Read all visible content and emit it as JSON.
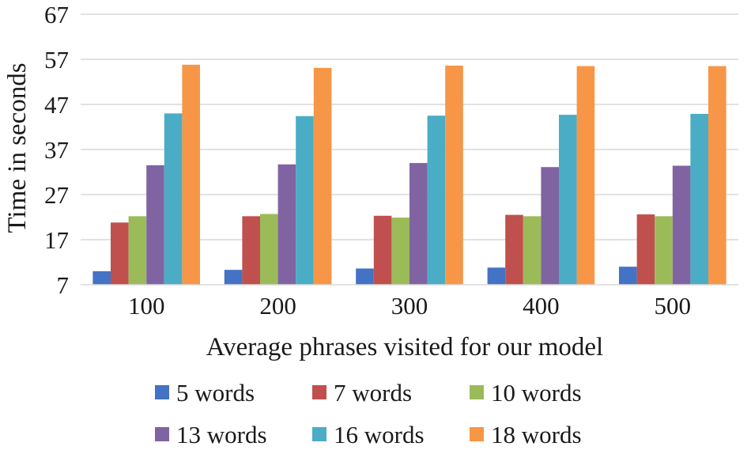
{
  "chart_data": {
    "type": "bar",
    "title": "",
    "xlabel": "Average phrases visited for our model",
    "ylabel": "Time in seconds",
    "categories": [
      "100",
      "200",
      "300",
      "400",
      "500"
    ],
    "ylim": [
      7,
      67
    ],
    "yticks": [
      7,
      17,
      27,
      37,
      47,
      57,
      67
    ],
    "grid": true,
    "legend_position": "bottom",
    "series": [
      {
        "name": "5 words",
        "color": "#4472C4",
        "values": [
          10.0,
          10.3,
          10.6,
          10.8,
          11.0
        ]
      },
      {
        "name": "7 words",
        "color": "#C0504D",
        "values": [
          20.8,
          22.2,
          22.3,
          22.5,
          22.6
        ]
      },
      {
        "name": "10 words",
        "color": "#9BBB59",
        "values": [
          22.2,
          22.7,
          21.9,
          22.2,
          22.2
        ]
      },
      {
        "name": "13 words",
        "color": "#8064A2",
        "values": [
          33.5,
          33.7,
          34.0,
          33.1,
          33.4
        ]
      },
      {
        "name": "16 words",
        "color": "#4BACC6",
        "values": [
          45.0,
          44.4,
          44.5,
          44.7,
          44.9
        ]
      },
      {
        "name": "18 words",
        "color": "#F79646",
        "values": [
          55.8,
          55.1,
          55.6,
          55.5,
          55.5
        ]
      }
    ]
  }
}
